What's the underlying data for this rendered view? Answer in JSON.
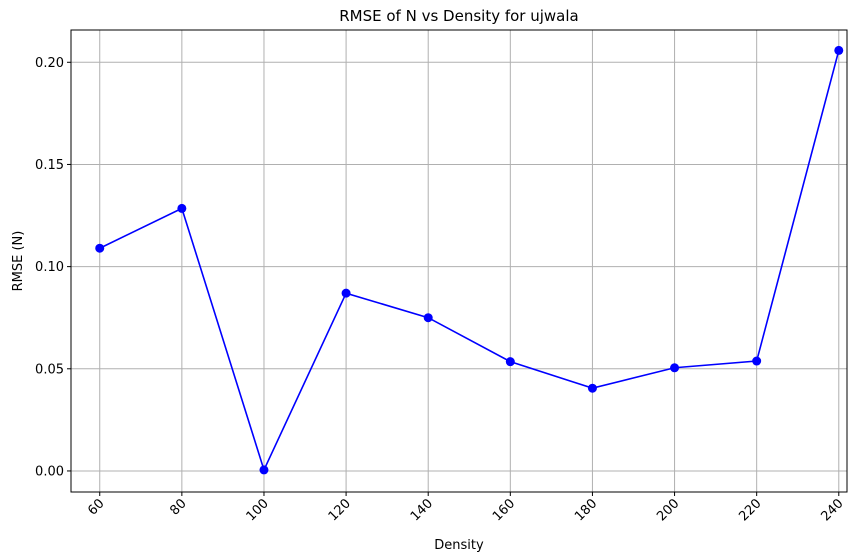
{
  "chart_data": {
    "type": "line",
    "title": "RMSE of N vs Density for ujwala",
    "xlabel": "Density",
    "ylabel": "RMSE (N)",
    "x": [
      60,
      80,
      100,
      120,
      140,
      160,
      180,
      200,
      220,
      240
    ],
    "x_tick_labels": [
      "60",
      "80",
      "100",
      "120",
      "140",
      "160",
      "180",
      "200",
      "220",
      "240"
    ],
    "series": [
      {
        "values": [
          0.109,
          0.1285,
          0.0005,
          0.087,
          0.075,
          0.0535,
          0.0405,
          0.0505,
          0.0538,
          0.2058
        ],
        "color": "#0000ff",
        "marker": "circle"
      }
    ],
    "xlim": [
      53,
      242
    ],
    "ylim": [
      -0.0103,
      0.2158
    ],
    "y_ticks": [
      0.0,
      0.05,
      0.1,
      0.15,
      0.2
    ],
    "y_tick_labels": [
      "0.00",
      "0.05",
      "0.10",
      "0.15",
      "0.20"
    ],
    "x_tick_rotation": 45,
    "grid": true,
    "grid_color": "#b0b0b0"
  }
}
